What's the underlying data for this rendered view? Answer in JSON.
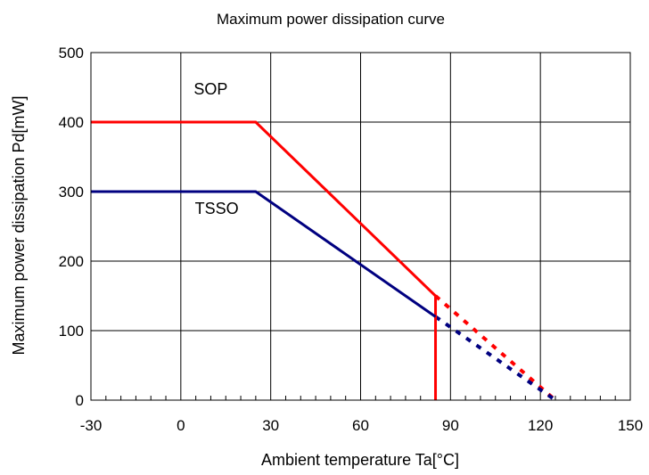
{
  "chart_data": {
    "type": "line",
    "title": "Maximum power dissipation curve",
    "xlabel": "Ambient temperature Ta[°C]",
    "ylabel": "Maximum power dissipation Pd[mW]",
    "xlim": [
      -30,
      150
    ],
    "ylim": [
      0,
      500
    ],
    "xticks": [
      -30,
      0,
      30,
      60,
      90,
      120,
      150
    ],
    "yticks": [
      0,
      100,
      200,
      300,
      400,
      500
    ],
    "x_minor_step": 5,
    "grid": true,
    "colors": {
      "sop": "#ff0000",
      "tssop": "#000080"
    },
    "series": [
      {
        "name": "SOP",
        "color": "#ff0000",
        "solid": [
          [
            -30,
            400
          ],
          [
            25,
            400
          ],
          [
            85,
            150
          ],
          [
            85,
            0
          ]
        ],
        "dashed": [
          [
            85,
            150
          ],
          [
            125,
            0
          ]
        ]
      },
      {
        "name": "TSSO",
        "color": "#000080",
        "solid": [
          [
            -30,
            300
          ],
          [
            25,
            300
          ],
          [
            85,
            120
          ]
        ],
        "dashed": [
          [
            85,
            120
          ],
          [
            125,
            0
          ]
        ]
      }
    ],
    "annotations": [
      {
        "text": "SOP",
        "x": 10,
        "y": 440
      },
      {
        "text": "TSSO",
        "x": 12,
        "y": 268
      }
    ]
  }
}
